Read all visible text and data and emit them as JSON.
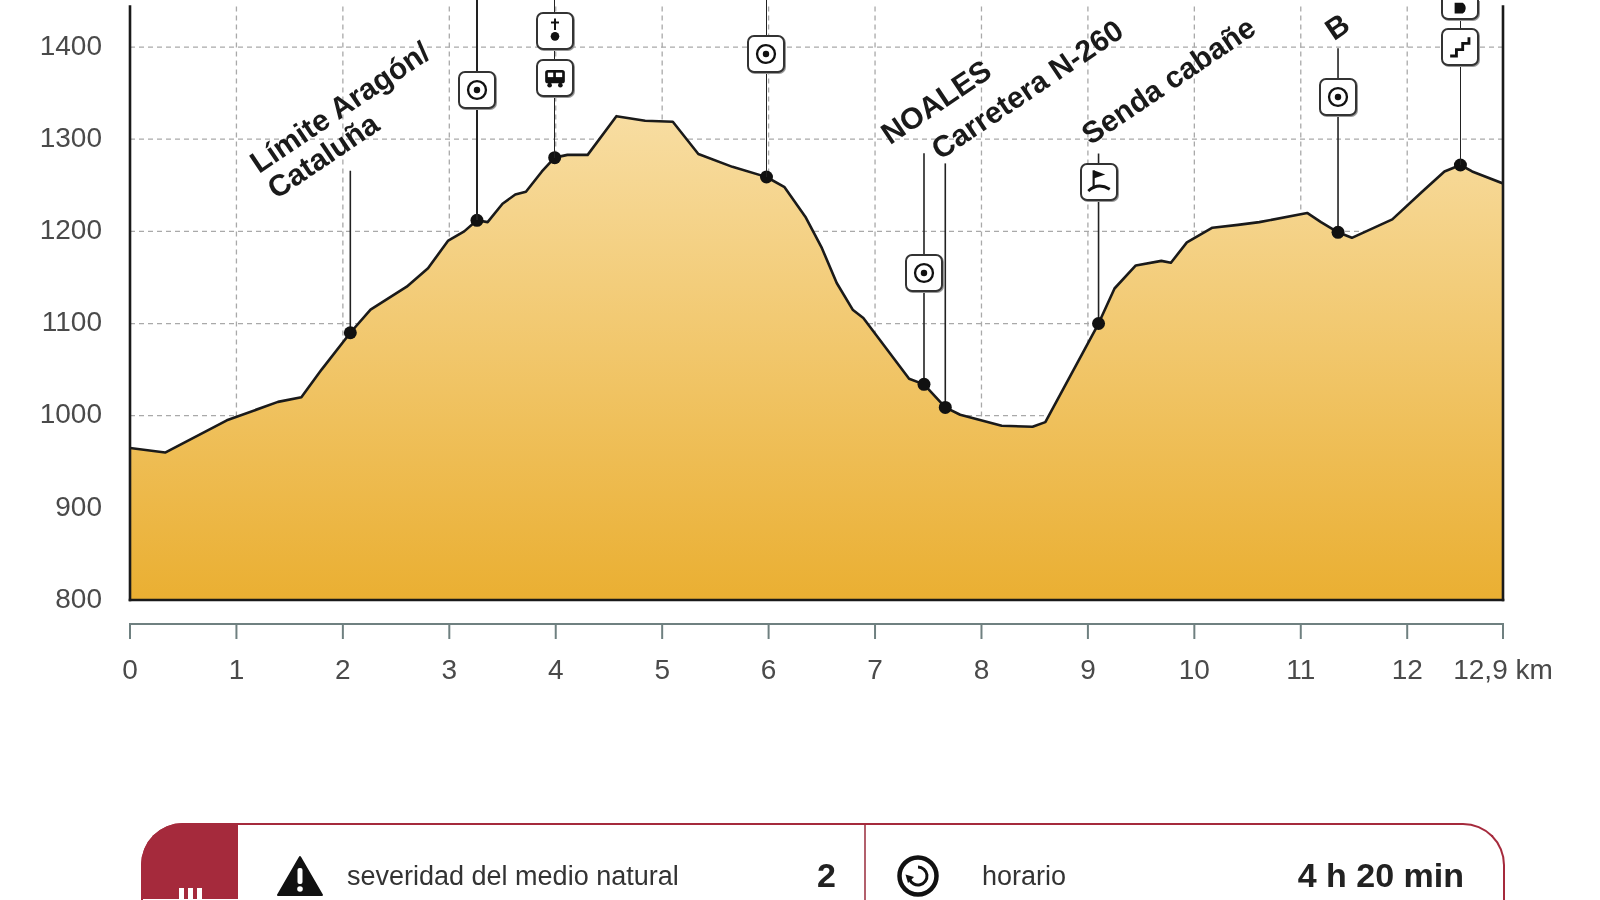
{
  "chart_data": {
    "type": "area",
    "xlim": [
      0,
      12.9
    ],
    "xticks": [
      0,
      1,
      2,
      3,
      4,
      5,
      6,
      7,
      8,
      9,
      10,
      11,
      12,
      {
        "value": 12.9,
        "label": "12,9 km"
      }
    ],
    "ylim": [
      800,
      1444
    ],
    "yticks": [
      800,
      900,
      1000,
      1100,
      1200,
      1300,
      1400
    ],
    "grid": true,
    "legend": false,
    "series": [
      {
        "color": "#f2c35a",
        "x": [
          0,
          0.33,
          0.91,
          1.39,
          1.61,
          1.8,
          2.07,
          2.26,
          2.6,
          2.8,
          2.99,
          3.14,
          3.26,
          3.36,
          3.5,
          3.62,
          3.72,
          3.87,
          3.99,
          4.11,
          4.3,
          4.57,
          4.84,
          5.1,
          5.34,
          5.66,
          5.98,
          6.15,
          6.35,
          6.5,
          6.64,
          6.79,
          6.89,
          7.32,
          7.46,
          7.66,
          7.8,
          8.19,
          8.48,
          8.6,
          9.1,
          9.25,
          9.45,
          9.69,
          9.78,
          9.93,
          10.17,
          10.41,
          10.61,
          11.06,
          11.19,
          11.35,
          11.48,
          11.86,
          12.14,
          12.35,
          12.5,
          12.61,
          12.9
        ],
        "values": [
          965,
          960,
          995,
          1015,
          1020,
          1050,
          1090,
          1115,
          1140,
          1160,
          1190,
          1200,
          1212,
          1210,
          1230,
          1240,
          1243,
          1265,
          1280,
          1283,
          1283,
          1325,
          1320,
          1319,
          1284,
          1270,
          1259,
          1248,
          1215,
          1182,
          1144,
          1115,
          1106,
          1040,
          1034,
          1009,
          1001,
          989,
          988,
          993,
          1100,
          1138,
          1163,
          1168,
          1166,
          1188,
          1204,
          1207,
          1210,
          1220,
          1210,
          1199,
          1193,
          1213,
          1243,
          1265,
          1272,
          1265,
          1252
        ]
      },
      {
        "type": "scatter",
        "color": "#111111",
        "marker": "circle",
        "x": [
          2.07,
          3.26,
          3.99,
          5.98,
          7.46,
          7.66,
          9.1,
          11.35,
          12.5
        ],
        "values": [
          1090,
          1212,
          1280,
          1259,
          1034,
          1009,
          1100,
          1199,
          1272
        ]
      }
    ],
    "annotations": [
      {
        "text": "Límite Aragón/\nCataluña",
        "x": 2.07,
        "y": 1090
      },
      {
        "text": "NOALES",
        "x": 7.46,
        "y": 1034
      },
      {
        "text": "Carretera N-260",
        "x": 7.66,
        "y": 1009
      },
      {
        "text": "Senda cabañe",
        "x": 9.1,
        "y": 1100
      },
      {
        "text": "B",
        "x": 11.35,
        "y": 1199
      },
      "severidad del medio natural",
      "2",
      "horario",
      "4 h 20 min"
    ]
  }
}
